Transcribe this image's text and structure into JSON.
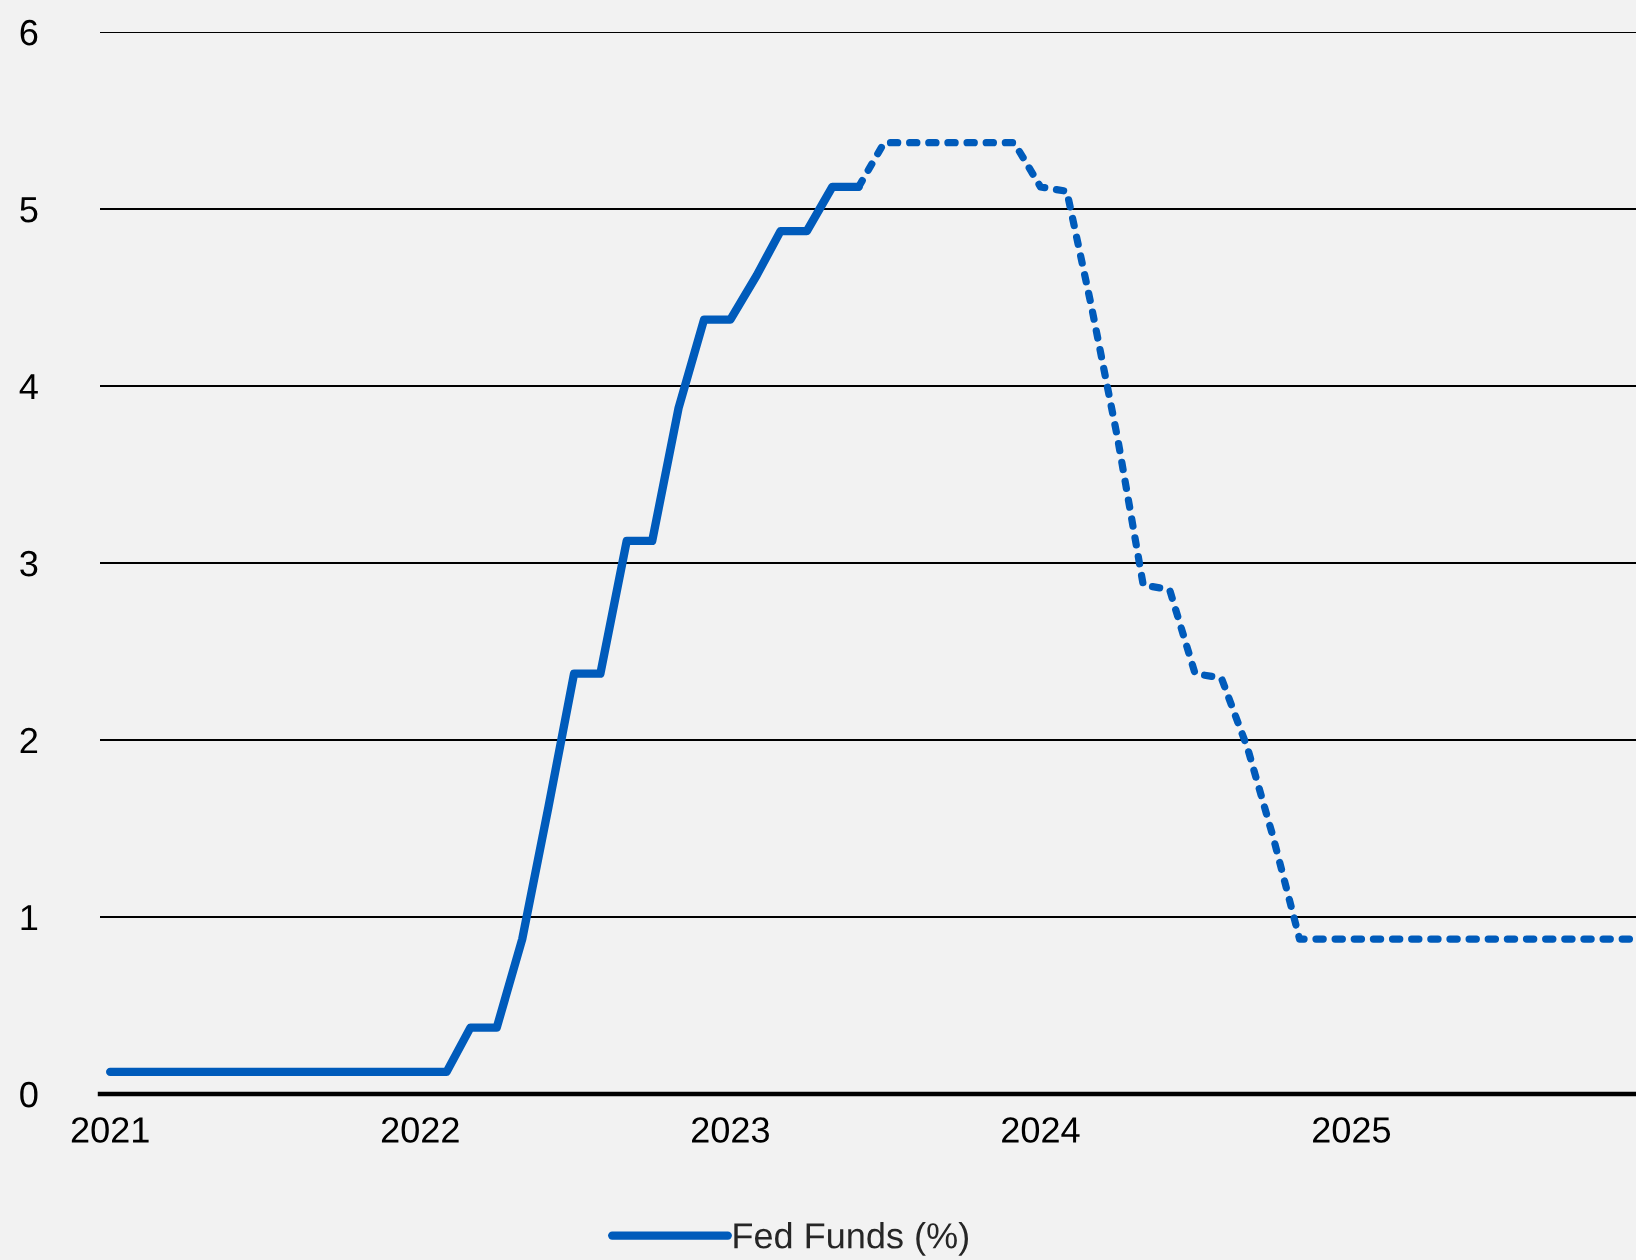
{
  "chart_data": {
    "type": "line",
    "xlim": [
      "2020-12-20",
      "2025-12-02"
    ],
    "xticks": [
      "2021",
      "2022",
      "2023",
      "2024",
      "2025"
    ],
    "ylim": [
      0,
      6
    ],
    "yticks": [
      0,
      1,
      2,
      3,
      4,
      5,
      6
    ],
    "grid": "y",
    "legend": "bottom",
    "marker": "none",
    "series": [
      {
        "name": "Fed Funds (%)",
        "color": "#005bbb",
        "line_style": "solid",
        "x": [
          "2021-01",
          "2021-02",
          "2021-03",
          "2021-04",
          "2021-05",
          "2021-06",
          "2021-07",
          "2021-08",
          "2021-09",
          "2021-10",
          "2021-11",
          "2021-12",
          "2022-01",
          "2022-02",
          "2022-03",
          "2022-04",
          "2022-05",
          "2022-06",
          "2022-07",
          "2022-08",
          "2022-09",
          "2022-10",
          "2022-11",
          "2022-12",
          "2023-01",
          "2023-02",
          "2023-03",
          "2023-04",
          "2023-05",
          "2023-06"
        ],
        "values": [
          0.125,
          0.125,
          0.125,
          0.125,
          0.125,
          0.125,
          0.125,
          0.125,
          0.125,
          0.125,
          0.125,
          0.125,
          0.125,
          0.125,
          0.375,
          0.375,
          0.875,
          1.625,
          2.375,
          2.375,
          3.125,
          3.125,
          3.875,
          4.375,
          4.375,
          4.625,
          4.875,
          4.875,
          5.125,
          5.125
        ]
      },
      {
        "color": "#005bbb",
        "line_style": "dotted",
        "x": [
          "2023-06",
          "2023-07",
          "2023-08",
          "2023-09",
          "2023-10",
          "2023-11",
          "2023-12",
          "2024-01",
          "2024-02",
          "2024-03",
          "2024-04",
          "2024-05",
          "2024-06",
          "2024-07",
          "2024-08",
          "2024-09",
          "2024-10",
          "2024-11",
          "2024-12",
          "2025-01",
          "2025-02",
          "2025-03",
          "2025-04",
          "2025-05",
          "2025-06",
          "2025-07",
          "2025-08",
          "2025-09",
          "2025-10",
          "2025-11",
          "2025-12"
        ],
        "values": [
          5.125,
          5.375,
          5.375,
          5.375,
          5.375,
          5.375,
          5.375,
          5.125,
          5.1,
          4.45,
          3.7,
          2.875,
          2.85,
          2.375,
          2.35,
          1.95,
          1.45,
          0.875,
          0.875,
          0.875,
          0.875,
          0.875,
          0.875,
          0.875,
          0.875,
          0.875,
          0.875,
          0.875,
          0.875,
          0.875,
          0.875
        ]
      }
    ]
  }
}
